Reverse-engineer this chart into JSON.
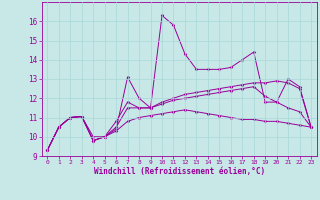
{
  "background_color": "#c8e8e8",
  "grid_color": "#b0d0d0",
  "line_color": "#990099",
  "xlabel": "Windchill (Refroidissement éolien,°C)",
  "xlim": [
    -0.5,
    23.5
  ],
  "ylim": [
    9,
    17
  ],
  "xticks": [
    0,
    1,
    2,
    3,
    4,
    5,
    6,
    7,
    8,
    9,
    10,
    11,
    12,
    13,
    14,
    15,
    16,
    17,
    18,
    19,
    20,
    21,
    22,
    23
  ],
  "yticks": [
    9,
    10,
    11,
    12,
    13,
    14,
    15,
    16
  ],
  "line1_x": [
    0,
    1,
    2,
    3,
    4,
    5,
    6,
    7,
    8,
    9,
    10,
    11,
    12,
    13,
    14,
    15,
    16,
    17,
    18,
    19,
    20,
    21,
    22,
    23
  ],
  "line1_y": [
    9.3,
    10.5,
    11.0,
    11.05,
    9.8,
    10.0,
    10.4,
    13.1,
    12.0,
    11.5,
    16.3,
    15.8,
    14.3,
    13.5,
    13.5,
    13.5,
    13.6,
    14.0,
    14.4,
    11.8,
    11.8,
    13.0,
    12.6,
    10.5
  ],
  "line2_x": [
    0,
    1,
    2,
    3,
    4,
    5,
    6,
    7,
    8,
    9,
    10,
    11,
    12,
    13,
    14,
    15,
    16,
    17,
    18,
    19,
    20,
    21,
    22,
    23
  ],
  "line2_y": [
    9.3,
    10.5,
    11.0,
    11.05,
    10.0,
    10.0,
    10.8,
    11.8,
    11.5,
    11.5,
    11.8,
    12.0,
    12.2,
    12.3,
    12.4,
    12.5,
    12.6,
    12.7,
    12.8,
    12.8,
    12.9,
    12.8,
    12.5,
    10.5
  ],
  "line3_x": [
    0,
    1,
    2,
    3,
    4,
    5,
    6,
    7,
    8,
    9,
    10,
    11,
    12,
    13,
    14,
    15,
    16,
    17,
    18,
    19,
    20,
    21,
    22,
    23
  ],
  "line3_y": [
    9.3,
    10.5,
    11.0,
    11.05,
    9.8,
    10.0,
    10.5,
    11.5,
    11.5,
    11.5,
    11.7,
    11.9,
    12.0,
    12.1,
    12.2,
    12.3,
    12.4,
    12.5,
    12.6,
    12.1,
    11.8,
    11.5,
    11.3,
    10.5
  ],
  "line4_x": [
    0,
    1,
    2,
    3,
    4,
    5,
    6,
    7,
    8,
    9,
    10,
    11,
    12,
    13,
    14,
    15,
    16,
    17,
    18,
    19,
    20,
    21,
    22,
    23
  ],
  "line4_y": [
    9.3,
    10.5,
    11.0,
    11.05,
    9.8,
    10.0,
    10.3,
    10.8,
    11.0,
    11.1,
    11.2,
    11.3,
    11.4,
    11.3,
    11.2,
    11.1,
    11.0,
    10.9,
    10.9,
    10.8,
    10.8,
    10.7,
    10.6,
    10.5
  ]
}
